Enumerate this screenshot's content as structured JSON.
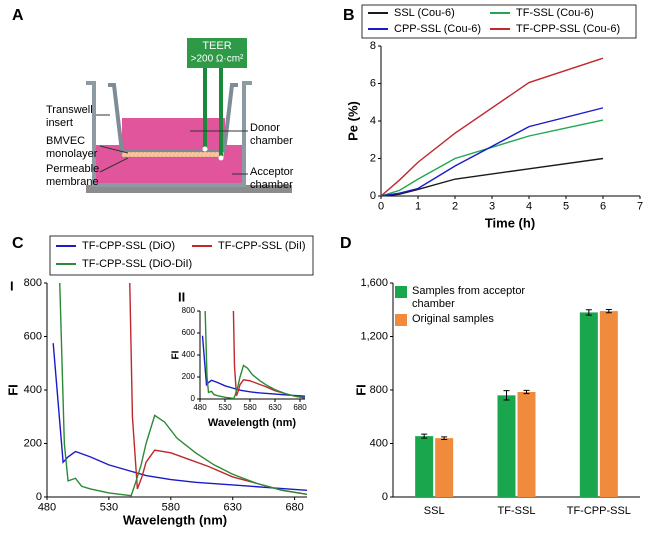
{
  "diagram": {
    "label": "A",
    "teer": "TEER",
    "resistance": ">200 Ω·cm²",
    "labels": {
      "transwell_insert": "Transwell insert",
      "bmvec": "BMVEC monolayer",
      "membrane": "Permeable membrane",
      "donor": "Donor chamber",
      "acceptor": "Acceptor chamber"
    }
  },
  "chart_data": [
    {
      "label": "B",
      "type": "line",
      "xlabel": "Time (h)",
      "ylabel": "Pe (%)",
      "xlim": [
        0,
        7
      ],
      "xticks": [
        0,
        1,
        2,
        3,
        4,
        5,
        6,
        7
      ],
      "ylim": [
        0,
        8
      ],
      "yticks": [
        0,
        2,
        4,
        6,
        8
      ],
      "legend": "top",
      "series": [
        {
          "name": "SSL (Cou-6)",
          "color": "#1a1a1a",
          "x": [
            0,
            0.5,
            1,
            2,
            4,
            6
          ],
          "values": [
            0,
            0.1,
            0.35,
            0.9,
            1.45,
            2.0
          ]
        },
        {
          "name": "TF-SSL (Cou-6)",
          "color": "#22a650",
          "x": [
            0,
            0.5,
            1,
            2,
            4,
            6
          ],
          "values": [
            0,
            0.3,
            0.9,
            2.0,
            3.2,
            4.05
          ]
        },
        {
          "name": "CPP-SSL (Cou-6)",
          "color": "#1a1ac8",
          "x": [
            0,
            0.5,
            1,
            2,
            4,
            6
          ],
          "values": [
            0,
            0.15,
            0.4,
            1.6,
            3.7,
            4.7
          ]
        },
        {
          "name": "TF-CPP-SSL (Cou-6)",
          "color": "#c0282d",
          "x": [
            0,
            0.5,
            1,
            2,
            4,
            6
          ],
          "values": [
            0,
            0.85,
            1.8,
            3.35,
            6.05,
            7.35
          ]
        }
      ]
    },
    {
      "label": "C",
      "sub_label": "I",
      "type": "line",
      "xlabel": "Wavelength (nm)",
      "ylabel": "FI",
      "xlim": [
        480,
        690
      ],
      "xticks": [
        480,
        530,
        580,
        630,
        680
      ],
      "ylim": [
        0,
        800
      ],
      "yticks": [
        0,
        200,
        400,
        600,
        800
      ],
      "legend": "top",
      "series": [
        {
          "name": "TF-CPP-SSL (DiO)",
          "color": "#1a1ac8",
          "x": [
            485,
            493,
            497,
            503,
            515,
            530,
            545,
            560,
            580,
            600,
            630,
            660,
            690
          ],
          "values": [
            575,
            130,
            150,
            170,
            150,
            120,
            100,
            80,
            65,
            55,
            45,
            35,
            25
          ]
        },
        {
          "name": "TF-CPP-SSL (DiI)",
          "color": "#c0282d",
          "x": [
            546,
            549,
            553,
            557,
            560,
            567,
            580,
            595,
            610,
            630,
            650,
            670,
            690
          ],
          "values": [
            1000,
            300,
            30,
            80,
            130,
            175,
            165,
            140,
            115,
            75,
            50,
            25,
            10
          ]
        },
        {
          "name": "TF-CPP-SSL (DiO-DiI)",
          "color": "#2a8a35",
          "x": [
            490,
            494,
            497,
            503,
            508,
            515,
            530,
            548,
            552,
            556,
            560,
            567,
            575,
            585,
            600,
            615,
            630,
            650,
            670,
            690
          ],
          "values": [
            850,
            200,
            60,
            70,
            40,
            30,
            15,
            5,
            60,
            120,
            200,
            305,
            280,
            220,
            165,
            120,
            85,
            50,
            25,
            10
          ]
        }
      ],
      "inset": {
        "label": "II",
        "xlabel": "Wavelength (nm)",
        "ylabel": "FI",
        "xlim": [
          480,
          690
        ],
        "xticks": [
          480,
          530,
          580,
          630,
          680
        ],
        "ylim": [
          0,
          800
        ],
        "yticks": [
          0,
          200,
          400,
          600,
          800
        ]
      }
    },
    {
      "label": "D",
      "type": "bar",
      "ylabel": "FI",
      "categories": [
        "SSL",
        "TF-SSL",
        "TF-CPP-SSL"
      ],
      "ylim": [
        0,
        1600
      ],
      "yticks": [
        0,
        400,
        800,
        {
          "value": 1200,
          "label": "1,200"
        },
        {
          "value": 1600,
          "label": "1,600"
        }
      ],
      "legend": "top-left",
      "series": [
        {
          "name": "Samples from acceptor chamber",
          "color": "#1aa64c",
          "values": [
            455,
            760,
            1380
          ],
          "errors": [
            15,
            35,
            20
          ]
        },
        {
          "name": "Original samples",
          "color": "#f08a3c",
          "values": [
            440,
            785,
            1390
          ],
          "errors": [
            10,
            12,
            12
          ]
        }
      ]
    }
  ]
}
